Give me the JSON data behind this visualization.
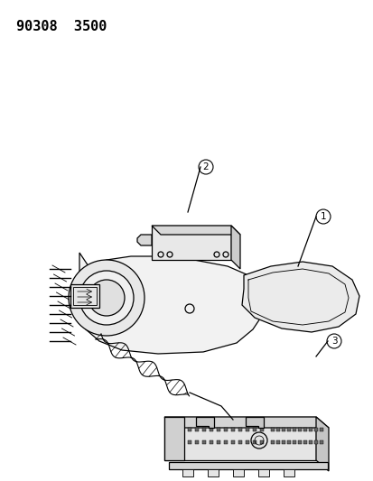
{
  "title": "90308  3500",
  "bg_color": "#ffffff",
  "line_color": "#000000",
  "title_fontsize": 11,
  "fig_width": 4.14,
  "fig_height": 5.33,
  "dpi": 100
}
